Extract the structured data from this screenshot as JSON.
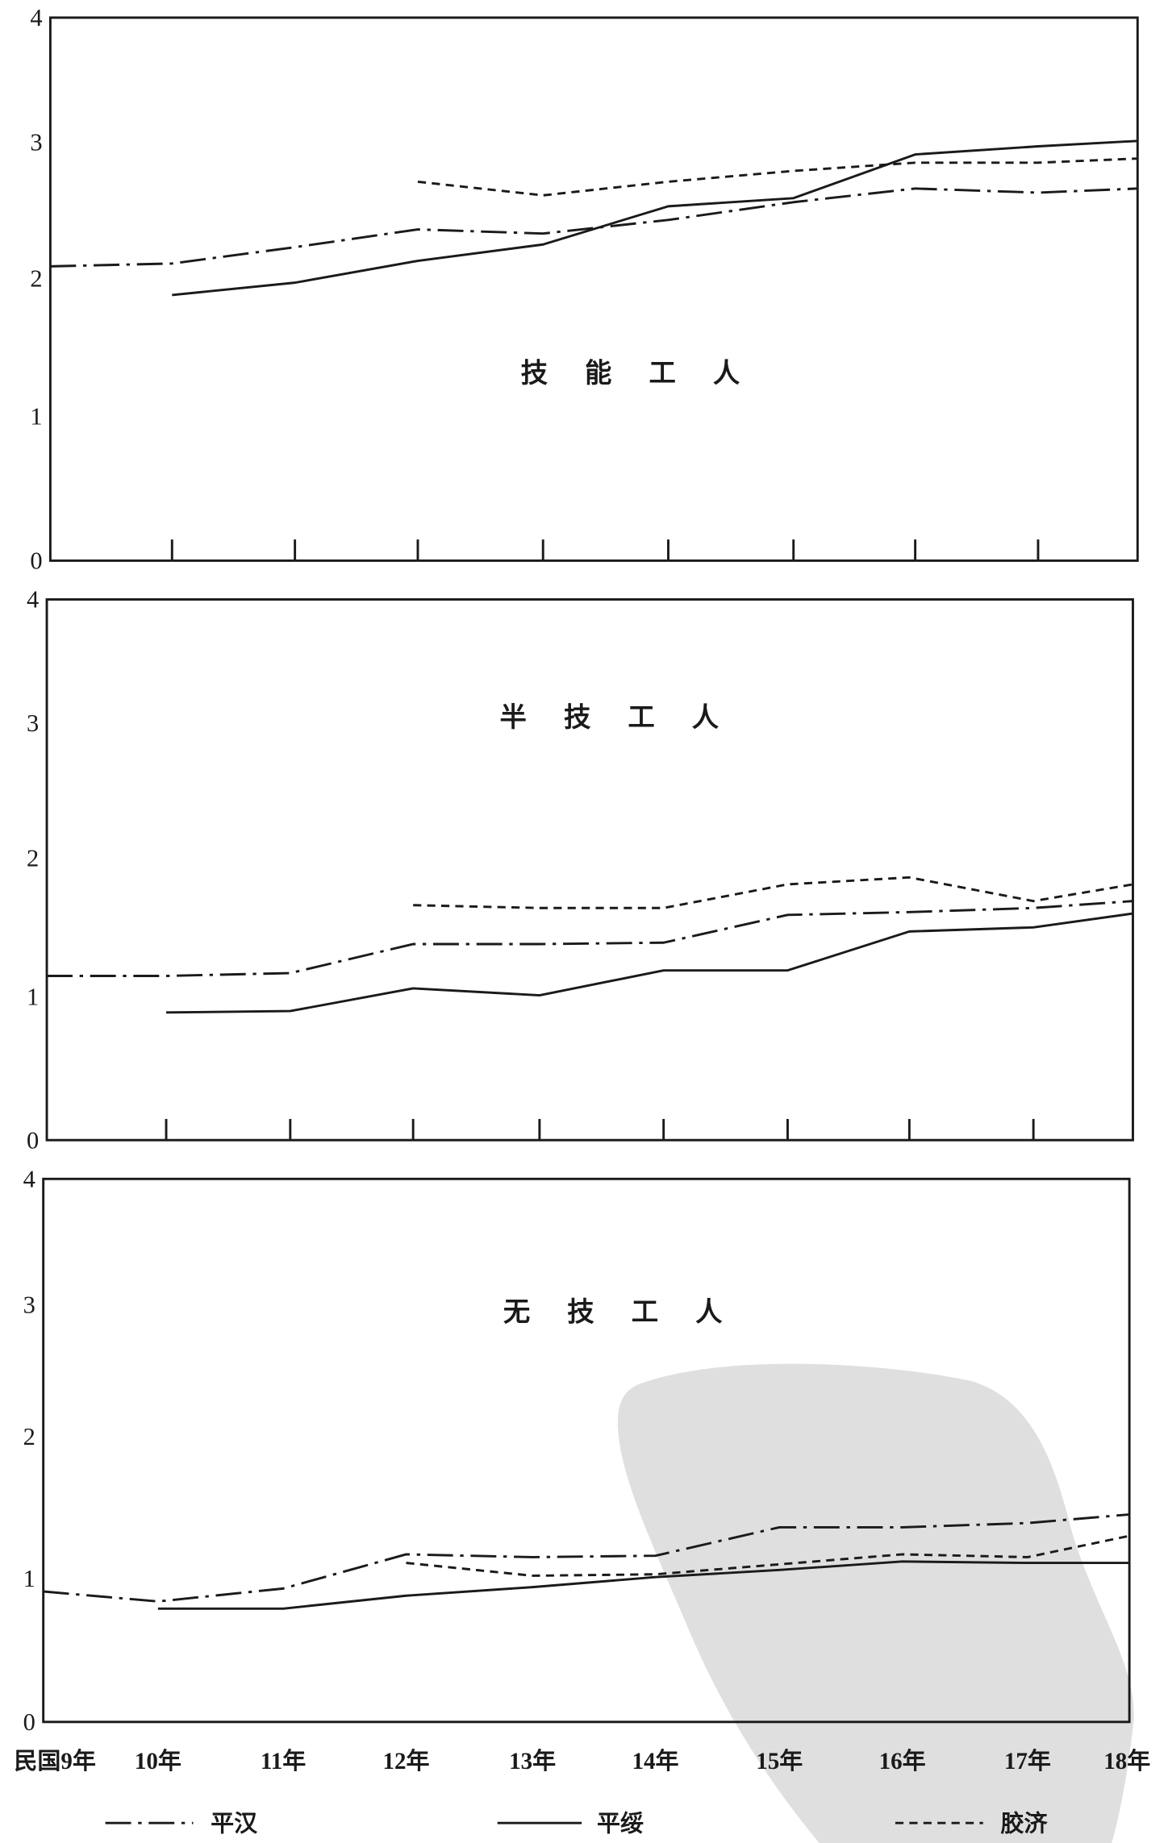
{
  "colors": {
    "ink": "#1a1a1a",
    "background": "#ffffff",
    "watermark": "#d4d4d4"
  },
  "chart_data": {
    "type": "line",
    "categories": [
      "民国9年",
      "10年",
      "11年",
      "12年",
      "13年",
      "14年",
      "15年",
      "16年",
      "17年",
      "18年"
    ],
    "ylim": [
      0,
      4
    ],
    "yticks": [
      0,
      1,
      2,
      3,
      4
    ],
    "grid": false,
    "legend_position": "bottom",
    "series": [
      {
        "name": "平汉",
        "line_style": "dash-dot"
      },
      {
        "name": "平绥",
        "line_style": "solid"
      },
      {
        "name": "胶济",
        "line_style": "dashed"
      }
    ],
    "panels": [
      {
        "title": "技 能 工 人",
        "values_by_series": [
          [
            2.09,
            2.11,
            2.23,
            2.36,
            2.33,
            2.43,
            2.56,
            2.66,
            2.63,
            2.66
          ],
          [
            null,
            1.88,
            1.97,
            2.13,
            2.25,
            2.53,
            2.59,
            2.91,
            2.97,
            3.01
          ],
          [
            null,
            null,
            null,
            2.71,
            2.61,
            2.71,
            2.79,
            2.85,
            2.85,
            2.88
          ]
        ]
      },
      {
        "title": "半 技 工 人",
        "values_by_series": [
          [
            1.15,
            1.15,
            1.17,
            1.38,
            1.38,
            1.39,
            1.59,
            1.61,
            1.64,
            1.69
          ],
          [
            null,
            0.89,
            0.9,
            1.06,
            1.01,
            1.19,
            1.19,
            1.47,
            1.5,
            1.6
          ],
          [
            null,
            null,
            null,
            1.66,
            1.64,
            1.64,
            1.81,
            1.86,
            1.69,
            1.81
          ]
        ]
      },
      {
        "title": "无 技 工 人",
        "values_by_series": [
          [
            0.91,
            0.84,
            0.93,
            1.17,
            1.15,
            1.16,
            1.36,
            1.36,
            1.39,
            1.45
          ],
          [
            null,
            0.79,
            0.79,
            0.88,
            0.94,
            1.01,
            1.06,
            1.12,
            1.11,
            1.11
          ],
          [
            null,
            null,
            null,
            1.11,
            1.02,
            1.03,
            1.1,
            1.17,
            1.15,
            1.3
          ]
        ]
      }
    ]
  }
}
